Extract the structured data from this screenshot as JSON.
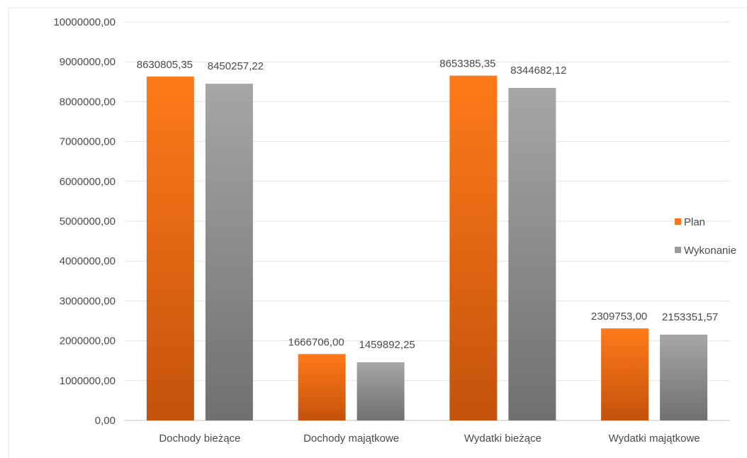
{
  "chart_data": {
    "type": "bar",
    "categories": [
      "Dochody bieżące",
      "Dochody majątkowe",
      "Wydatki bieżące",
      "Wydatki majątkowe"
    ],
    "series": [
      {
        "name": "Plan",
        "color": "#f57420",
        "values": [
          8630805.35,
          1666706.0,
          8653385.35,
          2309753.0
        ],
        "labels": [
          "8630805,35",
          "1666706,00",
          "8653385,35",
          "2309753,00"
        ]
      },
      {
        "name": "Wykonanie",
        "color": "#9a9a9a",
        "values": [
          8450257.22,
          1459892.25,
          8344682.12,
          2153351.57
        ],
        "labels": [
          "8450257,22",
          "1459892,25",
          "8344682,12",
          "2153351,57"
        ]
      }
    ],
    "y_ticks": [
      "0,00",
      "1000000,00",
      "2000000,00",
      "3000000,00",
      "4000000,00",
      "5000000,00",
      "6000000,00",
      "7000000,00",
      "8000000,00",
      "9000000,00",
      "10000000,00"
    ],
    "ylim": [
      0,
      10000000
    ],
    "grid": true,
    "legend_position": "right"
  }
}
